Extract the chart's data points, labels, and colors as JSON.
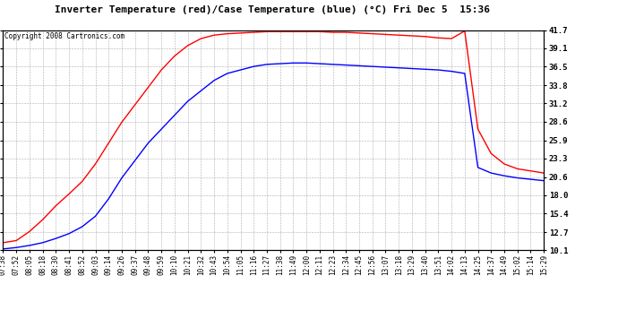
{
  "title": "Inverter Temperature (red)/Case Temperature (blue) (°C) Fri Dec 5  15:36",
  "copyright": "Copyright 2008 Cartronics.com",
  "ylabel_right_ticks": [
    10.1,
    12.7,
    15.4,
    18.0,
    20.6,
    23.3,
    25.9,
    28.6,
    31.2,
    33.8,
    36.5,
    39.1,
    41.7
  ],
  "ymin": 10.1,
  "ymax": 41.7,
  "background_color": "#ffffff",
  "plot_bg_color": "#ffffff",
  "grid_color": "#999999",
  "red_color": "#ff0000",
  "blue_color": "#0000ff",
  "x_labels": [
    "07:38",
    "07:52",
    "08:05",
    "08:18",
    "08:30",
    "08:41",
    "08:52",
    "09:03",
    "09:14",
    "09:26",
    "09:37",
    "09:48",
    "09:59",
    "10:10",
    "10:21",
    "10:32",
    "10:43",
    "10:54",
    "11:05",
    "11:16",
    "11:27",
    "11:38",
    "11:49",
    "12:00",
    "12:11",
    "12:23",
    "12:34",
    "12:45",
    "12:56",
    "13:07",
    "13:18",
    "13:29",
    "13:40",
    "13:51",
    "14:02",
    "14:13",
    "14:25",
    "14:37",
    "14:49",
    "15:02",
    "15:14",
    "15:29"
  ],
  "red_data": [
    11.2,
    11.5,
    12.8,
    14.5,
    16.5,
    18.2,
    20.0,
    22.5,
    25.5,
    28.5,
    31.0,
    33.5,
    36.0,
    38.0,
    39.5,
    40.5,
    41.0,
    41.2,
    41.3,
    41.4,
    41.5,
    41.5,
    41.5,
    41.5,
    41.5,
    41.4,
    41.4,
    41.3,
    41.2,
    41.1,
    41.0,
    40.9,
    40.8,
    40.6,
    40.5,
    41.6,
    27.5,
    24.0,
    22.5,
    21.8,
    21.5,
    21.2
  ],
  "blue_data": [
    10.3,
    10.5,
    10.8,
    11.2,
    11.8,
    12.5,
    13.5,
    15.0,
    17.5,
    20.5,
    23.0,
    25.5,
    27.5,
    29.5,
    31.5,
    33.0,
    34.5,
    35.5,
    36.0,
    36.5,
    36.8,
    36.9,
    37.0,
    37.0,
    36.9,
    36.8,
    36.7,
    36.6,
    36.5,
    36.4,
    36.3,
    36.2,
    36.1,
    36.0,
    35.8,
    35.5,
    22.0,
    21.2,
    20.8,
    20.5,
    20.3,
    20.1
  ]
}
